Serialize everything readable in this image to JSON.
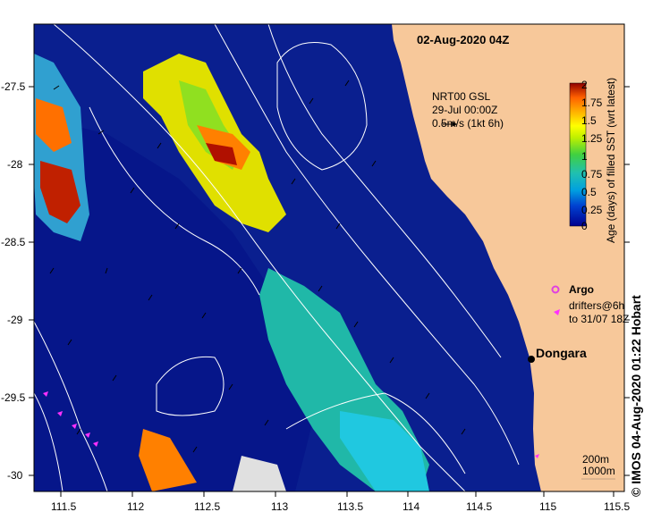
{
  "title": "02-Aug-2020 04Z",
  "product": {
    "line1": "NRT00 GSL",
    "line2": "29-Jul 00:00Z",
    "line3": "0.5m/s (1kt 6h)"
  },
  "colorbar": {
    "title": "Age (days) of filled SST (wrt latest)",
    "ticks": [
      "2",
      "1.75",
      "1.5",
      "1.25",
      "1",
      "0.75",
      "0.5",
      "0.25",
      "0"
    ]
  },
  "legend": {
    "argo": "Argo",
    "drifters_line1": "drifters@6h",
    "drifters_line2": "to 31/07 18Z",
    "argo_color": "#e040e0",
    "drifter_color": "#ff30ff"
  },
  "place": "Dongara",
  "contours": {
    "depth1": "200m",
    "depth2": "1000m"
  },
  "credit": "© IMOS 04-Aug-2020 01:22 Hobart",
  "axes": {
    "lon_ticks": [
      "111.5",
      "112",
      "112.5",
      "113",
      "113.5",
      "114",
      "114.5",
      "115",
      "115.5"
    ],
    "lat_ticks": [
      "-27.5",
      "-28",
      "-28.5",
      "-29",
      "-29.5",
      "-30"
    ]
  },
  "colors": {
    "ocean": "#0a1f8f",
    "land": "#f7c89a",
    "age_low": "#00008b",
    "age_mid": "#20c0a0",
    "age_high": "#8b0000"
  }
}
